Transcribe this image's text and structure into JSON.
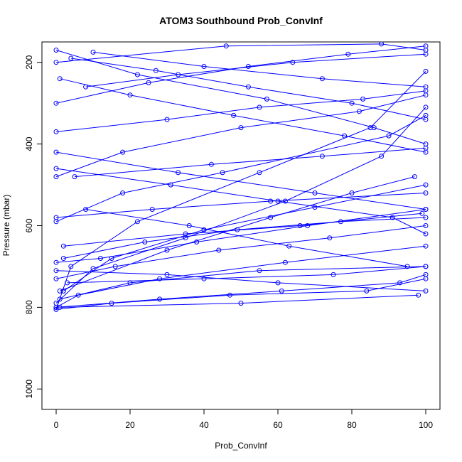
{
  "chart_data": {
    "type": "line",
    "title": "ATOM3 Southbound Prob_ConvInf",
    "xlabel": "Prob_ConvInf",
    "ylabel": "Pressure (mbar)",
    "xlim": [
      0,
      100
    ],
    "ylim": [
      1050,
      150
    ],
    "y_reversed": true,
    "x_ticks": [
      0,
      20,
      40,
      60,
      80,
      100
    ],
    "y_ticks": [
      200,
      400,
      600,
      800,
      1000
    ],
    "grid": false,
    "series_color": "#0000ff",
    "marker": "open-circle",
    "series": [
      {
        "x": [
          100,
          85,
          55,
          22,
          4,
          0
        ],
        "y": [
          222,
          360,
          470,
          590,
          700,
          805
        ]
      },
      {
        "x": [
          0,
          10,
          35,
          62,
          88,
          100
        ],
        "y": [
          790,
          705,
          630,
          540,
          430,
          310
        ]
      },
      {
        "x": [
          100,
          70,
          40,
          15,
          2
        ],
        "y": [
          500,
          555,
          610,
          680,
          760
        ]
      },
      {
        "x": [
          1,
          30,
          58,
          80,
          97
        ],
        "y": [
          760,
          660,
          580,
          520,
          480
        ]
      },
      {
        "x": [
          100,
          62,
          28,
          6,
          0
        ],
        "y": [
          650,
          690,
          730,
          770,
          800
        ]
      },
      {
        "x": [
          0,
          25,
          52,
          79,
          100
        ],
        "y": [
          300,
          250,
          210,
          180,
          160
        ]
      },
      {
        "x": [
          100,
          78,
          48,
          20,
          1
        ],
        "y": [
          420,
          380,
          330,
          280,
          240
        ]
      },
      {
        "x": [
          3,
          40,
          75,
          100
        ],
        "y": [
          740,
          730,
          720,
          700
        ]
      },
      {
        "x": [
          100,
          60,
          30,
          0
        ],
        "y": [
          760,
          740,
          720,
          710
        ]
      },
      {
        "x": [
          0,
          18,
          45,
          90,
          100
        ],
        "y": [
          590,
          520,
          470,
          380,
          330
        ]
      },
      {
        "x": [
          100,
          68,
          38,
          12,
          0
        ],
        "y": [
          560,
          600,
          640,
          680,
          690
        ]
      },
      {
        "x": [
          2,
          35,
          66,
          99
        ],
        "y": [
          650,
          620,
          600,
          570
        ]
      },
      {
        "x": [
          100,
          82,
          50,
          18,
          0
        ],
        "y": [
          280,
          320,
          360,
          420,
          480
        ]
      },
      {
        "x": [
          0,
          22,
          57,
          86,
          100
        ],
        "y": [
          170,
          230,
          290,
          360,
          400
        ]
      },
      {
        "x": [
          100,
          64,
          33,
          8
        ],
        "y": [
          180,
          200,
          230,
          260
        ]
      },
      {
        "x": [
          5,
          42,
          72,
          100
        ],
        "y": [
          480,
          450,
          430,
          410
        ]
      },
      {
        "x": [
          100,
          74,
          44,
          16,
          0
        ],
        "y": [
          600,
          630,
          660,
          700,
          730
        ]
      },
      {
        "x": [
          0,
          28,
          61,
          93,
          100
        ],
        "y": [
          800,
          780,
          760,
          740,
          720
        ]
      },
      {
        "x": [
          100,
          55,
          20,
          1
        ],
        "y": [
          700,
          710,
          740,
          780
        ]
      },
      {
        "x": [
          1,
          50,
          98
        ],
        "y": [
          800,
          790,
          770
        ]
      },
      {
        "x": [
          100,
          80,
          52,
          27,
          4
        ],
        "y": [
          340,
          300,
          260,
          220,
          190
        ]
      },
      {
        "x": [
          0,
          33,
          70,
          100
        ],
        "y": [
          420,
          470,
          520,
          560
        ]
      },
      {
        "x": [
          100,
          91,
          60,
          31,
          0
        ],
        "y": [
          620,
          580,
          540,
          500,
          460
        ]
      },
      {
        "x": [
          2,
          24,
          49,
          77,
          100
        ],
        "y": [
          680,
          640,
          610,
          590,
          580
        ]
      },
      {
        "x": [
          100,
          58,
          26,
          0
        ],
        "y": [
          520,
          540,
          560,
          580
        ]
      },
      {
        "x": [
          0,
          46,
          88,
          100
        ],
        "y": [
          200,
          160,
          155,
          170
        ]
      },
      {
        "x": [
          100,
          72,
          40,
          10
        ],
        "y": [
          260,
          240,
          210,
          175
        ]
      },
      {
        "x": [
          8,
          36,
          63,
          95
        ],
        "y": [
          560,
          600,
          650,
          700
        ]
      },
      {
        "x": [
          100,
          84,
          47,
          15,
          0
        ],
        "y": [
          730,
          760,
          770,
          790,
          805
        ]
      },
      {
        "x": [
          0,
          30,
          55,
          83,
          100
        ],
        "y": [
          370,
          340,
          310,
          290,
          270
        ]
      }
    ]
  }
}
